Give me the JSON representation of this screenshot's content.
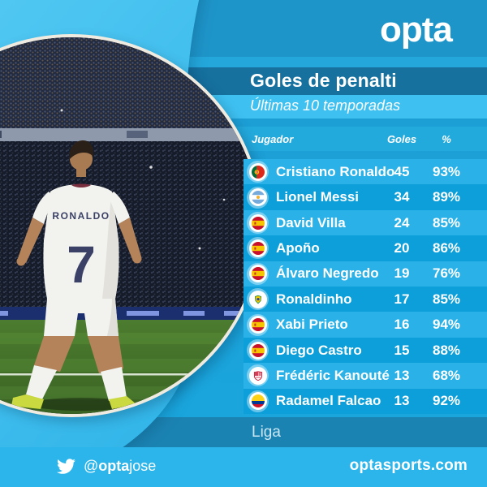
{
  "brand": {
    "logo_text": "opta",
    "website": "optasports.com",
    "twitter": {
      "at": "@",
      "bold": "opta",
      "light": "jose"
    }
  },
  "header": {
    "title": "Goles de penalti",
    "subtitle": "Últimas 10 temporadas"
  },
  "table": {
    "columns": {
      "player": "Jugador",
      "goals": "Goles",
      "pct": "%"
    },
    "rows": [
      {
        "player": "Cristiano Ronaldo",
        "flag": "portugal",
        "goals": "45",
        "pct": "93%"
      },
      {
        "player": "Lionel Messi",
        "flag": "argentina",
        "goals": "34",
        "pct": "89%"
      },
      {
        "player": "David Villa",
        "flag": "spain",
        "goals": "24",
        "pct": "85%"
      },
      {
        "player": "Apoño",
        "flag": "spain",
        "goals": "20",
        "pct": "86%"
      },
      {
        "player": "Álvaro Negredo",
        "flag": "spain",
        "goals": "19",
        "pct": "76%"
      },
      {
        "player": "Ronaldinho",
        "flag": "brazil",
        "goals": "17",
        "pct": "85%"
      },
      {
        "player": "Xabi Prieto",
        "flag": "spain",
        "goals": "16",
        "pct": "94%"
      },
      {
        "player": "Diego Castro",
        "flag": "spain",
        "goals": "15",
        "pct": "88%"
      },
      {
        "player": "Frédéric Kanouté",
        "flag": "sevilla",
        "goals": "13",
        "pct": "68%"
      },
      {
        "player": "Radamel Falcao",
        "flag": "colombia",
        "goals": "13",
        "pct": "92%"
      }
    ]
  },
  "footer_note": "Liga",
  "photo": {
    "jersey_name": "RONALDO",
    "jersey_number": "7"
  },
  "colors": {
    "background": "#1BA2D9",
    "top_band": "#1E95C9",
    "title_band": "#16719F",
    "subtitle_band": "#3EC1F1",
    "row_odd": "#2AB2E8",
    "row_even": "#0C9FD9",
    "liga_band": "#1B83B2",
    "footer_band": "#2CB5EB",
    "ring": "#46C2F0",
    "text": "#FFFFFF"
  },
  "chart_data": {
    "type": "table",
    "title": "Goles de penalti",
    "subtitle": "Últimas 10 temporadas",
    "columns": [
      "Jugador",
      "Goles",
      "%"
    ],
    "rows": [
      [
        "Cristiano Ronaldo",
        45,
        "93%"
      ],
      [
        "Lionel Messi",
        34,
        "89%"
      ],
      [
        "David Villa",
        24,
        "85%"
      ],
      [
        "Apoño",
        20,
        "86%"
      ],
      [
        "Álvaro Negredo",
        19,
        "76%"
      ],
      [
        "Ronaldinho",
        17,
        "85%"
      ],
      [
        "Xabi Prieto",
        16,
        "94%"
      ],
      [
        "Diego Castro",
        15,
        "88%"
      ],
      [
        "Frédéric Kanouté",
        13,
        "68%"
      ],
      [
        "Radamel Falcao",
        13,
        "92%"
      ]
    ],
    "footer": "Liga"
  }
}
